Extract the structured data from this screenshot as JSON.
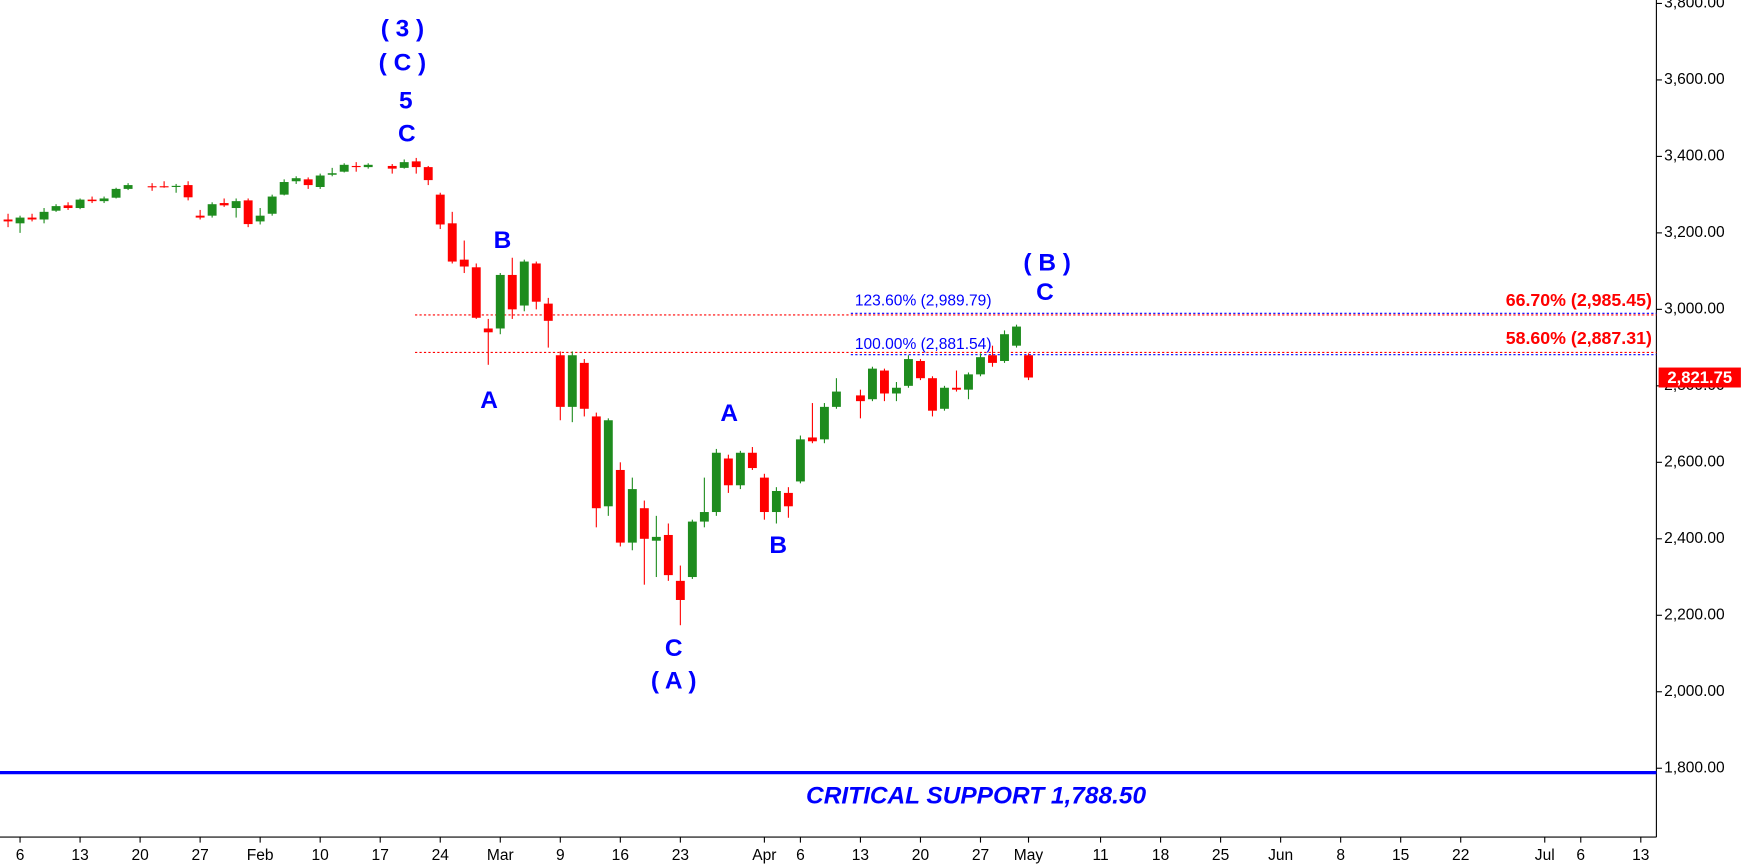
{
  "chart_data": {
    "type": "candlestick",
    "x": [
      -1,
      0,
      1,
      2,
      3,
      4,
      5,
      6,
      7,
      8,
      9,
      11,
      12,
      13,
      14,
      15,
      16,
      17,
      18,
      19,
      20,
      21,
      22,
      23,
      24,
      25,
      26,
      27,
      28,
      29,
      31,
      32,
      33,
      34,
      35,
      36,
      37,
      38,
      39,
      40,
      41,
      42,
      43,
      44,
      45,
      46,
      47,
      48,
      49,
      50,
      51,
      52,
      53,
      54,
      55,
      56,
      57,
      58,
      59,
      60,
      61,
      62,
      63,
      64,
      65,
      66,
      67,
      68,
      70,
      71,
      72,
      73,
      74,
      75,
      76,
      77,
      78,
      79,
      80,
      81,
      82,
      83,
      84
    ],
    "open": [
      3235,
      3225,
      3240,
      3235,
      3258,
      3272,
      3265,
      3287,
      3283,
      3292,
      3315,
      3322,
      3322,
      3320,
      3325,
      3245,
      3245,
      3278,
      3265,
      3285,
      3230,
      3250,
      3300,
      3335,
      3340,
      3320,
      3352,
      3360,
      3375,
      3372,
      3375,
      3370,
      3387,
      3372,
      3300,
      3225,
      3130,
      3110,
      2950,
      2950,
      3090,
      3010,
      3120,
      3015,
      2880,
      2745,
      2860,
      2720,
      2485,
      2580,
      2390,
      2480,
      2395,
      2410,
      2290,
      2300,
      2445,
      2470,
      2610,
      2540,
      2625,
      2560,
      2470,
      2520,
      2550,
      2665,
      2660,
      2745,
      2775,
      2765,
      2840,
      2780,
      2800,
      2865,
      2820,
      2740,
      2795,
      2790,
      2830,
      2880,
      2865,
      2905,
      2880
    ],
    "high": [
      3250,
      3245,
      3250,
      3265,
      3275,
      3280,
      3290,
      3295,
      3295,
      3318,
      3330,
      3330,
      3335,
      3328,
      3335,
      3260,
      3280,
      3290,
      3290,
      3290,
      3265,
      3300,
      3340,
      3348,
      3345,
      3355,
      3370,
      3382,
      3385,
      3382,
      3380,
      3392,
      3396,
      3375,
      3305,
      3255,
      3180,
      3120,
      2975,
      3095,
      3135,
      3130,
      3125,
      3030,
      2890,
      2890,
      2870,
      2730,
      2715,
      2600,
      2560,
      2500,
      2460,
      2440,
      2330,
      2450,
      2560,
      2635,
      2620,
      2630,
      2640,
      2570,
      2535,
      2535,
      2670,
      2755,
      2755,
      2820,
      2790,
      2850,
      2845,
      2810,
      2880,
      2870,
      2825,
      2800,
      2840,
      2835,
      2885,
      2905,
      2945,
      2960,
      2885
    ],
    "low": [
      3215,
      3200,
      3230,
      3225,
      3255,
      3260,
      3262,
      3278,
      3278,
      3290,
      3312,
      3310,
      3318,
      3305,
      3285,
      3235,
      3240,
      3268,
      3240,
      3215,
      3222,
      3245,
      3298,
      3328,
      3315,
      3315,
      3348,
      3358,
      3360,
      3368,
      3355,
      3368,
      3355,
      3325,
      3210,
      3120,
      3095,
      2975,
      2855,
      2935,
      2975,
      2995,
      3000,
      2900,
      2710,
      2705,
      2720,
      2430,
      2460,
      2380,
      2370,
      2280,
      2300,
      2290,
      2174,
      2295,
      2430,
      2460,
      2520,
      2530,
      2580,
      2450,
      2440,
      2455,
      2545,
      2650,
      2650,
      2740,
      2715,
      2760,
      2760,
      2760,
      2795,
      2815,
      2720,
      2735,
      2785,
      2765,
      2825,
      2850,
      2860,
      2900,
      2815
    ],
    "close": [
      3230,
      3240,
      3235,
      3255,
      3270,
      3265,
      3287,
      3283,
      3290,
      3315,
      3325,
      3320,
      3320,
      3323,
      3293,
      3240,
      3275,
      3272,
      3283,
      3223,
      3245,
      3295,
      3333,
      3343,
      3325,
      3350,
      3356,
      3378,
      3372,
      3378,
      3368,
      3385,
      3372,
      3338,
      3222,
      3125,
      3112,
      2978,
      2940,
      3090,
      3000,
      3125,
      3020,
      2970,
      2745,
      2880,
      2740,
      2480,
      2710,
      2390,
      2530,
      2400,
      2405,
      2305,
      2240,
      2445,
      2470,
      2625,
      2540,
      2625,
      2585,
      2470,
      2525,
      2485,
      2660,
      2655,
      2745,
      2785,
      2760,
      2845,
      2780,
      2795,
      2870,
      2820,
      2735,
      2795,
      2790,
      2830,
      2875,
      2860,
      2935,
      2955,
      2821.75
    ],
    "up_color": "#1e8c1e",
    "down_color": "#ff0000",
    "xlim": [
      -1.67,
      136.3
    ],
    "ylim": [
      1620,
      3809
    ],
    "xticks": [
      {
        "value": 0,
        "label": "6"
      },
      {
        "value": 5,
        "label": "13"
      },
      {
        "value": 10,
        "label": "20"
      },
      {
        "value": 15,
        "label": "27"
      },
      {
        "value": 20,
        "label": "Feb"
      },
      {
        "value": 25,
        "label": "10"
      },
      {
        "value": 30,
        "label": "17"
      },
      {
        "value": 35,
        "label": "24"
      },
      {
        "value": 40,
        "label": "Mar"
      },
      {
        "value": 45,
        "label": "9"
      },
      {
        "value": 50,
        "label": "16"
      },
      {
        "value": 55,
        "label": "23"
      },
      {
        "value": 62,
        "label": "Apr"
      },
      {
        "value": 65,
        "label": "6"
      },
      {
        "value": 70,
        "label": "13"
      },
      {
        "value": 75,
        "label": "20"
      },
      {
        "value": 80,
        "label": "27"
      },
      {
        "value": 84,
        "label": "May"
      },
      {
        "value": 90,
        "label": "11"
      },
      {
        "value": 95,
        "label": "18"
      },
      {
        "value": 100,
        "label": "25"
      },
      {
        "value": 105,
        "label": "Jun"
      },
      {
        "value": 110,
        "label": "8"
      },
      {
        "value": 115,
        "label": "15"
      },
      {
        "value": 120,
        "label": "22"
      },
      {
        "value": 127,
        "label": "Jul"
      },
      {
        "value": 130,
        "label": "6"
      },
      {
        "value": 135,
        "label": "13"
      }
    ],
    "yticks": [
      {
        "value": 1800,
        "label": "1,800.00"
      },
      {
        "value": 2000,
        "label": "2,000.00"
      },
      {
        "value": 2200,
        "label": "2,200.00"
      },
      {
        "value": 2400,
        "label": "2,400.00"
      },
      {
        "value": 2600,
        "label": "2,600.00"
      },
      {
        "value": 2800,
        "label": "2,800.00"
      },
      {
        "value": 3000,
        "label": "3,000.00"
      },
      {
        "value": 3200,
        "label": "3,200.00"
      },
      {
        "value": 3400,
        "label": "3,400.00"
      },
      {
        "value": 3600,
        "label": "3,600.00"
      },
      {
        "value": 3800,
        "label": "3,800.00"
      }
    ],
    "last_price": {
      "value": 2821.75,
      "label": "2,821.75",
      "color": "#ff0000"
    },
    "support": {
      "value": 1788.5,
      "label": "CRITICAL SUPPORT 1,788.50",
      "color": "#0000ff"
    },
    "levels_left": {
      "color": "#ff0000",
      "items": [
        {
          "value": 2985.45,
          "label": "66.70% (2,985.45)"
        },
        {
          "value": 2887.31,
          "label": "58.60% (2,887.31)"
        }
      ]
    },
    "levels_right": {
      "color": "#0000ff",
      "items": [
        {
          "value": 2989.79,
          "label": "123.60% (2,989.79)"
        },
        {
          "value": 2881.54,
          "label": "100.00% (2,881.54)"
        }
      ]
    },
    "annotations": [
      "( 3 )",
      "( C )",
      "5",
      "C",
      "B",
      "A",
      "C",
      "( A )",
      "A",
      "B",
      "( B )",
      "C"
    ]
  }
}
